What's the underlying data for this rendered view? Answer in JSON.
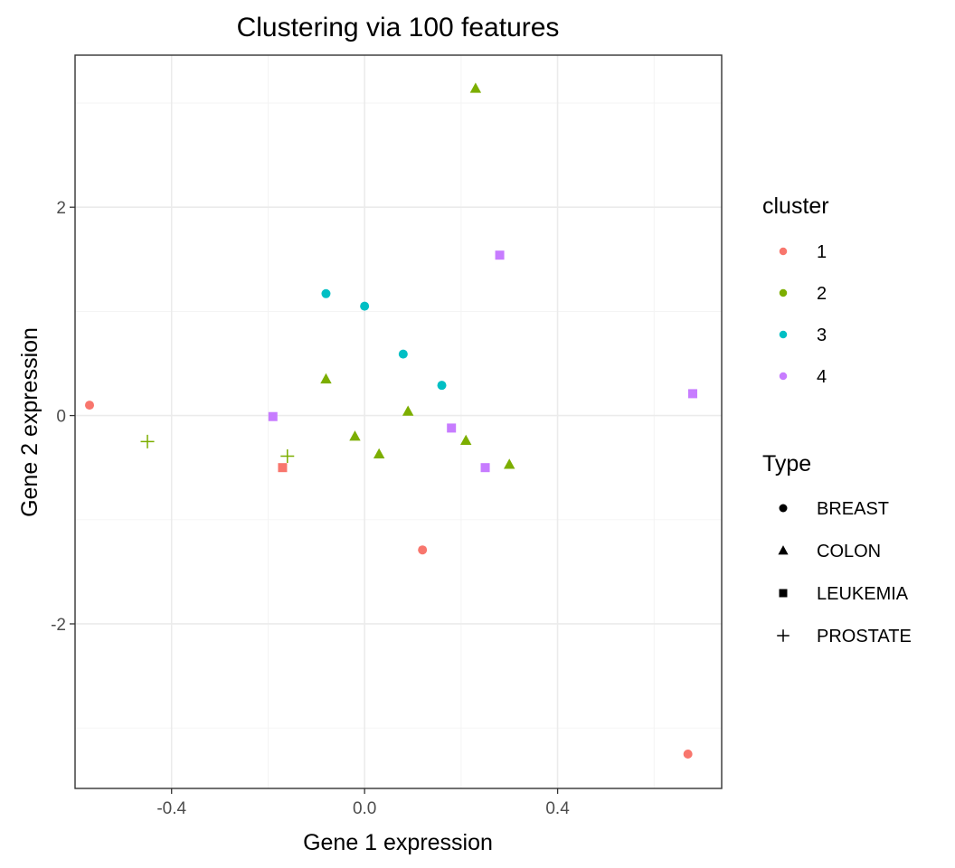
{
  "chart_data": {
    "type": "scatter",
    "title": "Clustering via 100 features",
    "xlabel": "Gene 1 expression",
    "ylabel": "Gene 2 expression",
    "xlim": [
      -0.6,
      0.74
    ],
    "ylim": [
      -3.58,
      3.46
    ],
    "x_ticks": [
      -0.4,
      0.0,
      0.4
    ],
    "x_tick_labels": [
      "-0.4",
      "0.0",
      "0.4"
    ],
    "y_ticks": [
      -2,
      0,
      2
    ],
    "y_tick_labels": [
      "-2",
      "0",
      "2"
    ],
    "grid": true,
    "legend_position": "right",
    "colour_legend": {
      "title": "cluster",
      "entries": [
        {
          "label": "1",
          "color": "#F8766D"
        },
        {
          "label": "2",
          "color": "#7CAE00"
        },
        {
          "label": "3",
          "color": "#00BFC4"
        },
        {
          "label": "4",
          "color": "#C77CFF"
        }
      ]
    },
    "shape_legend": {
      "title": "Type",
      "entries": [
        {
          "label": "BREAST",
          "shape": "circle"
        },
        {
          "label": "COLON",
          "shape": "triangle"
        },
        {
          "label": "LEUKEMIA",
          "shape": "square"
        },
        {
          "label": "PROSTATE",
          "shape": "plus"
        }
      ]
    },
    "points": [
      {
        "x": -0.57,
        "y": 0.1,
        "cluster": "1",
        "type": "BREAST"
      },
      {
        "x": 0.12,
        "y": -1.29,
        "cluster": "1",
        "type": "BREAST"
      },
      {
        "x": 0.67,
        "y": -3.25,
        "cluster": "1",
        "type": "BREAST"
      },
      {
        "x": -0.17,
        "y": -0.5,
        "cluster": "1",
        "type": "LEUKEMIA"
      },
      {
        "x": 0.23,
        "y": 3.14,
        "cluster": "2",
        "type": "COLON"
      },
      {
        "x": -0.08,
        "y": 0.35,
        "cluster": "2",
        "type": "COLON"
      },
      {
        "x": 0.09,
        "y": 0.04,
        "cluster": "2",
        "type": "COLON"
      },
      {
        "x": -0.02,
        "y": -0.2,
        "cluster": "2",
        "type": "COLON"
      },
      {
        "x": 0.03,
        "y": -0.37,
        "cluster": "2",
        "type": "COLON"
      },
      {
        "x": 0.21,
        "y": -0.24,
        "cluster": "2",
        "type": "COLON"
      },
      {
        "x": 0.3,
        "y": -0.47,
        "cluster": "2",
        "type": "COLON"
      },
      {
        "x": -0.45,
        "y": -0.25,
        "cluster": "2",
        "type": "PROSTATE"
      },
      {
        "x": -0.16,
        "y": -0.39,
        "cluster": "2",
        "type": "PROSTATE"
      },
      {
        "x": -0.08,
        "y": 1.17,
        "cluster": "3",
        "type": "BREAST"
      },
      {
        "x": 0.0,
        "y": 1.05,
        "cluster": "3",
        "type": "BREAST"
      },
      {
        "x": 0.08,
        "y": 0.59,
        "cluster": "3",
        "type": "BREAST"
      },
      {
        "x": 0.16,
        "y": 0.29,
        "cluster": "3",
        "type": "BREAST"
      },
      {
        "x": 0.28,
        "y": 1.54,
        "cluster": "4",
        "type": "LEUKEMIA"
      },
      {
        "x": -0.19,
        "y": -0.01,
        "cluster": "4",
        "type": "LEUKEMIA"
      },
      {
        "x": 0.18,
        "y": -0.12,
        "cluster": "4",
        "type": "LEUKEMIA"
      },
      {
        "x": 0.25,
        "y": -0.5,
        "cluster": "4",
        "type": "LEUKEMIA"
      },
      {
        "x": 0.68,
        "y": 0.21,
        "cluster": "4",
        "type": "LEUKEMIA"
      }
    ]
  }
}
